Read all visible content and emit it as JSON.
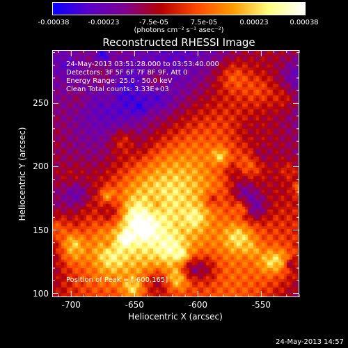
{
  "colorbar": {
    "tick_labels": [
      "-0.00038",
      "-0.00023",
      "-7.5e-05",
      "7.5e-05",
      "0.00023",
      "0.00038"
    ],
    "unit": "(photons cm⁻² s⁻¹ asec⁻²)",
    "colors": [
      "#0a00ff",
      "#5a00c8",
      "#7e0090",
      "#b40000",
      "#ff4a00",
      "#ff9a00",
      "#ffff80",
      "#ffffff"
    ]
  },
  "title": "Reconstructed RHESSI Image",
  "info": {
    "line1": "24-May-2013 03:51:28.000 to 03:53:40.000",
    "line2": "Detectors: 3F 5F 6F 7F 8F 9F, Att 0",
    "line3": "Energy Range: 25.0 - 50.0 keV",
    "line4": "Clean      Total counts: 3.33E+03",
    "peak": "Position of Peak = [-600,165]"
  },
  "axes": {
    "xlabel": "Heliocentric X (arcsec)",
    "ylabel": "Heliocentric Y (arcsec)",
    "x_ticks": [
      "-700",
      "-650",
      "-600",
      "-550"
    ],
    "y_ticks": [
      "100",
      "150",
      "200",
      "250"
    ],
    "xlim": [
      -715,
      -520
    ],
    "ylim": [
      97,
      292
    ]
  },
  "chart_data": {
    "type": "heatmap",
    "title": "Reconstructed RHESSI Image",
    "xlabel": "Heliocentric X (arcsec)",
    "ylabel": "Heliocentric Y (arcsec)",
    "xlim": [
      -715,
      -520
    ],
    "ylim": [
      97,
      292
    ],
    "x_ticks": [
      -700,
      -650,
      -600,
      -550
    ],
    "y_ticks": [
      100,
      150,
      200,
      250
    ],
    "color_range": [
      -0.00038,
      0.00038
    ],
    "peak": [
      -600,
      165
    ]
  },
  "footer": {
    "date": "24-May-2013 14:57"
  }
}
